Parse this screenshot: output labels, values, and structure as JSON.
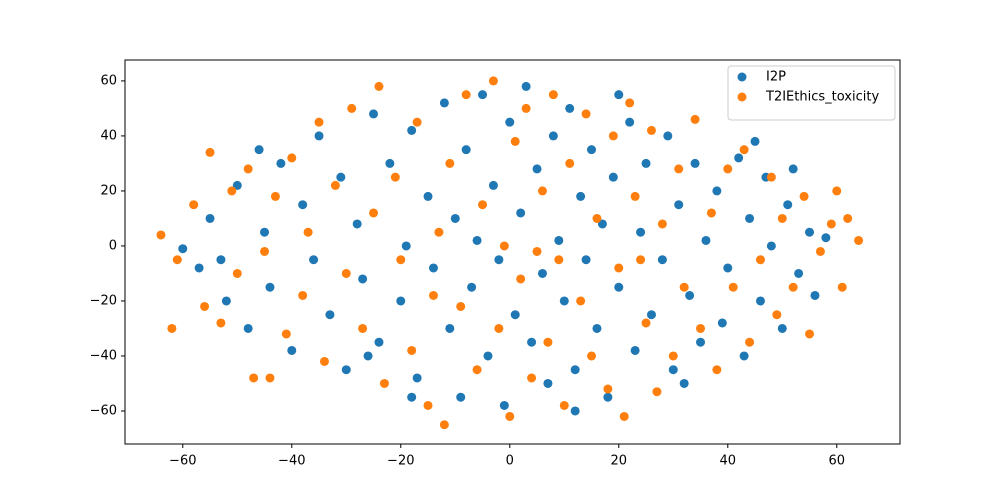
{
  "chart_data": {
    "type": "scatter",
    "xlim": [
      -70.6,
      71.6
    ],
    "ylim": [
      -72,
      67.6
    ],
    "xticks": [
      {
        "value": -60,
        "label": "−60"
      },
      {
        "value": -40,
        "label": "−40"
      },
      {
        "value": -20,
        "label": "−20"
      },
      0,
      20,
      40,
      60
    ],
    "yticks": [
      {
        "value": -60,
        "label": "−60"
      },
      {
        "value": -40,
        "label": "−40"
      },
      {
        "value": -20,
        "label": "−20"
      },
      0,
      20,
      40,
      60
    ],
    "legend": "upper right",
    "series": [
      {
        "name": "I2P",
        "color": "#1f77b4",
        "x": [
          -60,
          -57,
          -55,
          -52,
          -50,
          -48,
          -45,
          -44,
          -42,
          -40,
          -38,
          -36,
          -35,
          -33,
          -31,
          -30,
          -28,
          -27,
          -25,
          -24,
          -22,
          -20,
          -19,
          -18,
          -17,
          -15,
          -14,
          -12,
          -11,
          -10,
          -9,
          -8,
          -7,
          -5,
          -4,
          -3,
          -2,
          -1,
          0,
          1,
          2,
          3,
          4,
          5,
          6,
          7,
          8,
          9,
          10,
          11,
          12,
          13,
          14,
          15,
          16,
          17,
          18,
          19,
          20,
          22,
          23,
          24,
          25,
          26,
          28,
          29,
          30,
          31,
          33,
          34,
          35,
          36,
          38,
          39,
          40,
          42,
          43,
          44,
          46,
          47,
          48,
          50,
          51,
          53,
          55,
          56,
          58,
          -46,
          -53,
          45,
          52,
          -26,
          12,
          -18,
          32,
          -6,
          20
        ],
        "y": [
          -1,
          -8,
          10,
          -20,
          22,
          -30,
          5,
          -15,
          30,
          -38,
          15,
          -5,
          40,
          -25,
          25,
          -45,
          8,
          -12,
          48,
          -35,
          30,
          -20,
          0,
          42,
          -48,
          18,
          -8,
          52,
          -30,
          10,
          -55,
          35,
          -15,
          55,
          -40,
          22,
          -5,
          -58,
          45,
          -25,
          12,
          58,
          -35,
          28,
          -10,
          -50,
          40,
          2,
          -20,
          50,
          -45,
          18,
          -5,
          35,
          -30,
          8,
          -55,
          25,
          -15,
          45,
          -38,
          5,
          30,
          -25,
          -5,
          40,
          -45,
          15,
          -18,
          30,
          -35,
          2,
          20,
          -28,
          -8,
          32,
          -40,
          10,
          -20,
          25,
          0,
          -30,
          15,
          -10,
          5,
          -18,
          3,
          35,
          -5,
          38,
          28,
          -40,
          -60,
          -55,
          -50,
          2,
          55
        ]
      },
      {
        "name": "T2IEthics_toxicity",
        "color": "#ff7f0e",
        "x": [
          -64,
          -61,
          -58,
          -56,
          -55,
          -53,
          -51,
          -50,
          -48,
          -47,
          -45,
          -43,
          -41,
          -40,
          -38,
          -37,
          -35,
          -34,
          -32,
          -30,
          -29,
          -27,
          -25,
          -24,
          -23,
          -21,
          -20,
          -18,
          -17,
          -15,
          -13,
          -12,
          -11,
          -9,
          -8,
          -6,
          -5,
          -3,
          -2,
          -1,
          0,
          1,
          2,
          3,
          4,
          6,
          7,
          8,
          9,
          10,
          11,
          13,
          14,
          15,
          16,
          18,
          19,
          20,
          21,
          22,
          23,
          25,
          26,
          27,
          28,
          30,
          31,
          32,
          34,
          35,
          37,
          38,
          40,
          41,
          43,
          44,
          46,
          48,
          49,
          50,
          52,
          54,
          55,
          57,
          59,
          60,
          61,
          62,
          64,
          -62,
          -44,
          24,
          -14,
          5
        ],
        "y": [
          4,
          -5,
          15,
          -22,
          34,
          -28,
          20,
          -10,
          28,
          -48,
          -2,
          18,
          -32,
          32,
          -18,
          5,
          45,
          -42,
          22,
          -10,
          50,
          -30,
          12,
          58,
          -50,
          25,
          -5,
          -38,
          45,
          -58,
          5,
          -65,
          30,
          -22,
          55,
          -45,
          15,
          60,
          -30,
          0,
          -62,
          38,
          -12,
          50,
          -48,
          20,
          -35,
          55,
          -5,
          -58,
          30,
          -20,
          48,
          -40,
          10,
          -52,
          40,
          -8,
          -62,
          52,
          18,
          -28,
          42,
          -53,
          8,
          -40,
          28,
          -15,
          46,
          -30,
          12,
          -45,
          28,
          -15,
          35,
          -35,
          -5,
          25,
          -25,
          10,
          -15,
          18,
          -32,
          -2,
          8,
          20,
          -15,
          10,
          2,
          -30,
          -48,
          -5,
          -18,
          -2
        ]
      }
    ]
  }
}
